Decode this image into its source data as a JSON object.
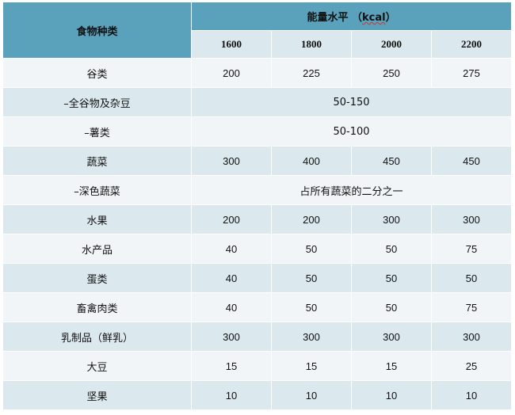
{
  "header": {
    "category_label": "食物种类",
    "energy_label_prefix": "能量水平 （",
    "energy_unit": "kcal",
    "energy_label_suffix": "）",
    "levels": [
      "1600",
      "1800",
      "2000",
      "2200"
    ]
  },
  "rows": [
    {
      "name": "谷类",
      "values": [
        "200",
        "225",
        "250",
        "275"
      ]
    },
    {
      "name": "–全谷物及杂豆",
      "span": "50-150"
    },
    {
      "name": "–薯类",
      "span": "50-100"
    },
    {
      "name": "蔬菜",
      "values": [
        "300",
        "400",
        "450",
        "450"
      ]
    },
    {
      "name": "–深色蔬菜",
      "span": "占所有蔬菜的二分之一"
    },
    {
      "name": "水果",
      "values": [
        "200",
        "200",
        "300",
        "300"
      ]
    },
    {
      "name": "水产品",
      "values": [
        "40",
        "50",
        "50",
        "75"
      ]
    },
    {
      "name": "蛋类",
      "values": [
        "40",
        "50",
        "50",
        "50"
      ]
    },
    {
      "name": "畜禽肉类",
      "values": [
        "40",
        "50",
        "50",
        "75"
      ]
    },
    {
      "name": "乳制品（鲜乳）",
      "values": [
        "300",
        "300",
        "300",
        "300"
      ]
    },
    {
      "name": "大豆",
      "values": [
        "15",
        "15",
        "15",
        "25"
      ]
    },
    {
      "name": "坚果",
      "values": [
        "10",
        "10",
        "10",
        "10"
      ]
    }
  ]
}
